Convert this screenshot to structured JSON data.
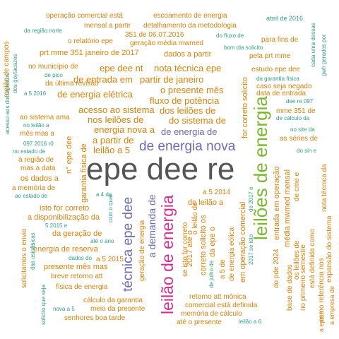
{
  "palette": {
    "orange": "#d9820b",
    "teal": "#2f9e82",
    "purple": "#6b6bb0",
    "magenta": "#d62f8f",
    "green": "#7ab82d",
    "dark": "#555555"
  },
  "words": {
    "w001": "epe dee re",
    "w002": "leilões de energia",
    "w003": "leilão de energia",
    "w004": "de energia nova",
    "w005": "técnica epe dee",
    "w006": "a demanda de",
    "w007": "de energia de",
    "w008": "dos leilões de",
    "w009": "do sistema de",
    "w010": "energia nova a",
    "w011": "fluxo de potência",
    "w012": "o presente mês",
    "w013": "nota técnica epe",
    "w014": "epe dee nt",
    "w015": "de entrada em",
    "w016": "partir de janeiro",
    "w017": "de energia elétrica",
    "w018": "acesso ao sistema",
    "w019": "nos leilões de",
    "w020": "a partir de",
    "w021": "leilão a 5",
    "w022": "operação comercial está",
    "w023": "escoamento de energia",
    "w024": "mensal a partir",
    "w025": "detalhamento da metodologia",
    "w026": "abril de 2016",
    "w027": "o relatório epe",
    "w028": "351 de 06.07.2016",
    "w029": "geração média mwmed",
    "w030": "da região norte",
    "w031": "do fluxo de",
    "w032": "bom dia solicito",
    "w033": "para fins de",
    "w034": "prt mme 351 janeiro de 2017",
    "w035": "dados a partir",
    "w036": "pela prt mme",
    "w037": "no município de",
    "w038": "de pico",
    "w039": "da última revisão",
    "w040": "estudo epe dee",
    "w041": "da garantia física",
    "w042": "caso seja negado",
    "w043": "data de entrada",
    "w044": "dee re 097",
    "w045": "mme 351 de",
    "w046": "de cálculo da",
    "w047": "ao sistema ama",
    "w048": "mês mas a",
    "w049": "no leilão a",
    "w050": "097 2016 r0",
    "w051": "no estado de",
    "w052": "à região de",
    "w053": "mas a data",
    "w054": "os dados a",
    "w055": "a memória de",
    "w056": "ao estado de",
    "w057": "no site da",
    "w058": "as séries de",
    "w059": "do sin e",
    "w060": "garantia física de",
    "w061": "a 4 de",
    "w062": "a 5 2014",
    "w063": "do leilão a",
    "w064": "isto for correto",
    "w065": "a disponibilização da",
    "w066": "5 2015 e",
    "w067": "da geração de",
    "w068": "até o ano",
    "w069": "energia de reserva",
    "w070": "a 5 2015",
    "w071": "dados do",
    "w072": "presente mês mas",
    "w073": "breve retorno att",
    "w074": "física de energia",
    "w075": "cálculo da garantia",
    "w076": "meio da presente",
    "w077": "senhores boa tarde",
    "w078": "nova a 5",
    "w079": "retorno att mônica",
    "w080": "comercial está definida",
    "w081": "memória de cálculo",
    "w082": "até o presente",
    "w083": "leilão a 6",
    "w084": "região de campos",
    "w085": "dos goytacazes",
    "w086": "a 5 2016",
    "w087": "acesso aos documentos",
    "w088": "n° epe dee",
    "w089": "com o qual",
    "w090": "geração de energia",
    "w091": "se isto for correto",
    "w092": "o leilão de",
    "w093": "2017 até o",
    "w094": "correto solicito os",
    "w095": "da epe o",
    "w096": "a 5 de",
    "w097": "de energia eólica",
    "w098": "em operação comercial",
    "w099": "de julho de",
    "w100": "2017 se isto",
    "w101": "de 2017 e",
    "w102": "entrada em operação",
    "w103": "do pde 2024",
    "w104": "média mwmed mensal",
    "w105": "de cme e",
    "w106": "os leilões de",
    "w107": "base de dados",
    "w108": "no primeiro semestre",
    "w109": "está definida como",
    "w110": "como referência nos",
    "w111": "expansão do sistema",
    "w112": "a epe e",
    "w113": "a empresa de",
    "w114": "nota técnica da",
    "w115": "cada uma dessas",
    "w116": "gwh gerados por",
    "w117": "for correto solicito",
    "w118": "solicitamos o envio",
    "w119": "das usinas",
    "w120": "solicito que seja",
    "w121": "físicas"
  }
}
